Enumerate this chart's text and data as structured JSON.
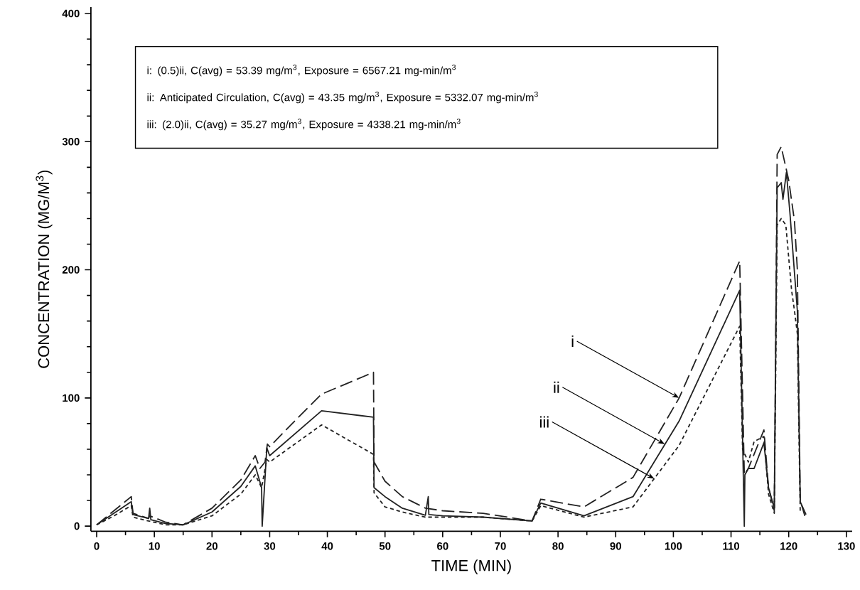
{
  "chart_data": {
    "type": "line",
    "xlabel": "TIME (MIN)",
    "ylabel": "CONCENTRATION (MG/M$^{3}$)",
    "xlim": [
      -1,
      131
    ],
    "ylim": [
      -4,
      405
    ],
    "xticks": [
      0,
      10,
      20,
      30,
      40,
      50,
      60,
      70,
      80,
      90,
      100,
      110,
      120,
      130
    ],
    "yticks": [
      0,
      100,
      200,
      300,
      400
    ],
    "annotations": [
      "i: (0.5)ii, C(avg) = 53.39 mg/m$^{3}$, Exposure = 6567.21 mg-min/m$^{3}$",
      "ii: Anticipated Circulation, C(avg) = 43.35 mg/m$^{3}$, Exposure = 5332.07 mg-min/m$^{3}$",
      "iii: (2.0)ii, C(avg) = 35.27 mg/m$^{3}$, Exposure = 4338.21 mg-min/m$^{3}$",
      {
        "text": "i",
        "x": 101,
        "y": 100
      },
      {
        "text": "ii",
        "x": 98.5,
        "y": 64
      },
      {
        "text": "iii",
        "x": 96.7,
        "y": 37
      }
    ],
    "series": [
      {
        "color": "#222222",
        "line_style": "dashed",
        "x": [
          0,
          3,
          6,
          6.3,
          9,
          9.2,
          12,
          15,
          20,
          25,
          27.5,
          28.3,
          29.2,
          29.6,
          30,
          35,
          39,
          48,
          48.1,
          50,
          53,
          57,
          60,
          67,
          75.5,
          77,
          84.5,
          93,
          101,
          111.5,
          112.3,
          113,
          115.7,
          116.5,
          117.5,
          118,
          118.7,
          119.5,
          120,
          121,
          121.5,
          122,
          122.8
        ],
        "values": [
          1,
          12,
          23,
          10,
          6,
          8,
          3,
          1,
          14,
          36,
          55,
          45,
          50,
          64,
          62,
          85,
          103,
          120,
          50,
          35,
          23,
          14,
          12,
          10,
          4,
          21,
          15,
          38,
          100,
          207,
          40,
          45,
          75,
          30,
          12,
          290,
          296,
          280,
          270,
          238,
          200,
          20,
          8
        ]
      },
      {
        "color": "#222222",
        "line_style": "solid",
        "x": [
          0,
          3,
          6,
          6.3,
          9,
          9.2,
          9.4,
          12,
          15,
          20,
          25,
          27.5,
          28.6,
          28.7,
          29.5,
          30,
          39,
          48,
          48.1,
          50,
          53,
          57,
          57.5,
          57.6,
          60,
          67,
          75.5,
          77,
          84.5,
          93,
          101,
          111.5,
          112.3,
          112.4,
          113,
          114,
          115.7,
          116.5,
          117.5,
          118,
          118.7,
          119,
          119.6,
          120.2,
          121.5,
          122,
          123
        ],
        "values": [
          1,
          10,
          19,
          9,
          6,
          14,
          5,
          2,
          1,
          11,
          31,
          47,
          30,
          0,
          61,
          55,
          90,
          85,
          30,
          23,
          14,
          8.5,
          23,
          9,
          8,
          7,
          4,
          18,
          8,
          23,
          82,
          184,
          0,
          40,
          45,
          45,
          65,
          30,
          14,
          264,
          268,
          255,
          276,
          245,
          168,
          19,
          9
        ]
      },
      {
        "color": "#222222",
        "line_style": "dotted",
        "x": [
          0,
          3,
          6,
          6.3,
          9,
          12,
          15,
          20,
          25,
          27.5,
          28.6,
          29.5,
          30,
          39,
          48,
          48.1,
          50,
          53,
          57,
          67,
          75.5,
          77,
          84.5,
          93,
          101,
          111.5,
          112,
          113,
          114,
          115.7,
          116.5,
          117.5,
          118,
          118.7,
          119.5,
          120.5,
          121,
          121.5,
          122
        ],
        "values": [
          1,
          8,
          16,
          7,
          4,
          1,
          1,
          8,
          25,
          40,
          30,
          52,
          50,
          79,
          56,
          26,
          15,
          11,
          7,
          7,
          4,
          16,
          7,
          15,
          63,
          156,
          60,
          50,
          66,
          70,
          25,
          10,
          235,
          240,
          235,
          184,
          168,
          150,
          10
        ]
      }
    ]
  }
}
